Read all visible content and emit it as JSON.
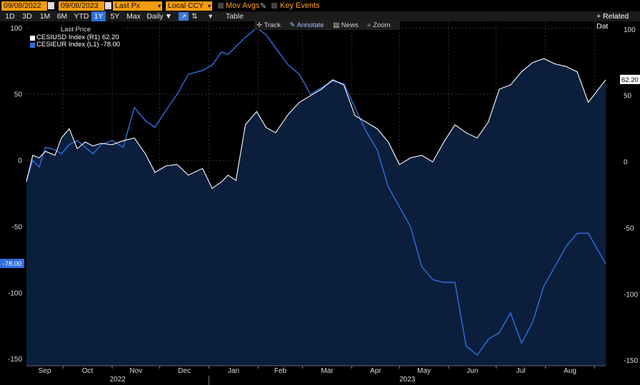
{
  "toolbar": {
    "start_date": "09/08/2022",
    "end_date": "09/08/2023",
    "field_price": "Last Px",
    "currency": "Local CCY",
    "mov_avgs": "Mov Avgs",
    "key_events": "Key Events",
    "related_data": "+ Related Dat"
  },
  "ranges": [
    "1D",
    "3D",
    "1M",
    "6M",
    "YTD",
    "1Y",
    "5Y",
    "Max"
  ],
  "selected_range": "1Y",
  "frequency": "Daily",
  "table_label": "Table",
  "chart_tools": {
    "track": "Track",
    "annotate": "Annotate",
    "news": "News",
    "zoom": "Zoom"
  },
  "legend": {
    "header": "Last Price",
    "items": [
      {
        "label": "CESIUSD Index  (R1)  62.20",
        "color": "#ffffff"
      },
      {
        "label": "CESIEUR Index  (L1) -78.00",
        "color": "#2f6fe0"
      }
    ]
  },
  "badges": {
    "right": "62.20",
    "left": "-78.00"
  },
  "colors": {
    "usd": "#ffffff",
    "eur": "#2f6fe0",
    "area": "#0b1f3d"
  },
  "chart_data": {
    "type": "line",
    "title": "",
    "x_months": [
      "Sep",
      "Oct",
      "Nov",
      "Dec",
      "Jan",
      "Feb",
      "Mar",
      "Apr",
      "May",
      "Jun",
      "Jul",
      "Aug"
    ],
    "x_years": [
      "2022",
      "2023"
    ],
    "ylim": [
      -155,
      105
    ],
    "y_ticks_left": [
      100,
      50,
      0,
      -50,
      -100,
      -150
    ],
    "y_ticks_right": [
      100,
      50,
      0,
      -50,
      -100,
      -150
    ],
    "series": [
      {
        "name": "CESIUSD Index",
        "axis": "right",
        "x": [
          "2022-09-08",
          "2022-09-12",
          "2022-09-16",
          "2022-09-20",
          "2022-09-26",
          "2022-09-30",
          "2022-10-05",
          "2022-10-10",
          "2022-10-15",
          "2022-10-20",
          "2022-10-25",
          "2022-11-01",
          "2022-11-08",
          "2022-11-15",
          "2022-11-22",
          "2022-11-28",
          "2022-12-05",
          "2022-12-12",
          "2022-12-19",
          "2022-12-28",
          "2023-01-03",
          "2023-01-09",
          "2023-01-13",
          "2023-01-18",
          "2023-01-24",
          "2023-01-31",
          "2023-02-06",
          "2023-02-12",
          "2023-02-20",
          "2023-02-27",
          "2023-03-06",
          "2023-03-13",
          "2023-03-20",
          "2023-03-27",
          "2023-04-03",
          "2023-04-10",
          "2023-04-17",
          "2023-04-24",
          "2023-05-01",
          "2023-05-08",
          "2023-05-15",
          "2023-05-22",
          "2023-05-29",
          "2023-06-05",
          "2023-06-12",
          "2023-06-19",
          "2023-06-26",
          "2023-07-03",
          "2023-07-10",
          "2023-07-17",
          "2023-07-24",
          "2023-07-31",
          "2023-08-07",
          "2023-08-14",
          "2023-08-21",
          "2023-08-28",
          "2023-09-08"
        ],
        "values": [
          -15,
          5,
          3,
          8,
          5,
          18,
          25,
          10,
          15,
          12,
          14,
          13,
          16,
          18,
          6,
          -8,
          -3,
          -2,
          -10,
          -5,
          -20,
          -15,
          -10,
          -14,
          28,
          38,
          26,
          22,
          36,
          45,
          50,
          55,
          62,
          58,
          35,
          30,
          25,
          15,
          -2,
          3,
          5,
          0,
          15,
          28,
          22,
          18,
          30,
          55,
          58,
          68,
          75,
          78,
          74,
          72,
          68,
          45,
          62
        ]
      },
      {
        "name": "CESIEUR Index",
        "axis": "left",
        "x": [
          "2022-09-08",
          "2022-09-12",
          "2022-09-16",
          "2022-09-20",
          "2022-09-26",
          "2022-09-30",
          "2022-10-05",
          "2022-10-10",
          "2022-10-15",
          "2022-10-20",
          "2022-10-25",
          "2022-11-01",
          "2022-11-08",
          "2022-11-15",
          "2022-11-22",
          "2022-11-28",
          "2022-12-05",
          "2022-12-12",
          "2022-12-19",
          "2022-12-28",
          "2023-01-03",
          "2023-01-09",
          "2023-01-13",
          "2023-01-18",
          "2023-01-24",
          "2023-01-31",
          "2023-02-06",
          "2023-02-12",
          "2023-02-20",
          "2023-02-27",
          "2023-03-06",
          "2023-03-13",
          "2023-03-20",
          "2023-03-27",
          "2023-04-03",
          "2023-04-10",
          "2023-04-17",
          "2023-04-24",
          "2023-05-01",
          "2023-05-08",
          "2023-05-15",
          "2023-05-22",
          "2023-05-29",
          "2023-06-05",
          "2023-06-12",
          "2023-06-19",
          "2023-06-26",
          "2023-07-03",
          "2023-07-10",
          "2023-07-17",
          "2023-07-24",
          "2023-07-31",
          "2023-08-07",
          "2023-08-14",
          "2023-08-21",
          "2023-08-28",
          "2023-09-08"
        ],
        "values": [
          -15,
          0,
          -5,
          10,
          8,
          5,
          12,
          15,
          10,
          5,
          12,
          15,
          10,
          40,
          30,
          25,
          38,
          50,
          65,
          68,
          72,
          82,
          80,
          86,
          93,
          100,
          95,
          85,
          72,
          65,
          50,
          55,
          60,
          58,
          40,
          22,
          8,
          -20,
          -35,
          -50,
          -80,
          -90,
          -92,
          -92,
          -140,
          -147,
          -135,
          -130,
          -115,
          -138,
          -122,
          -95,
          -80,
          -65,
          -55,
          -55,
          -78
        ]
      }
    ],
    "y_axis_label_left": "",
    "y_axis_label_right": ""
  }
}
